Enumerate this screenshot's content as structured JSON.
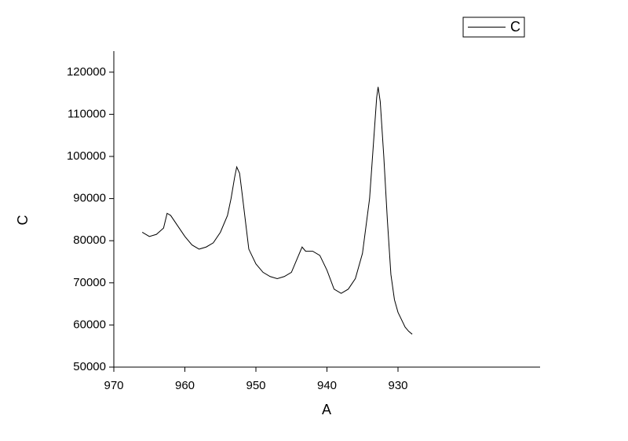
{
  "chart_data": {
    "type": "line",
    "x_label": "A",
    "y_label": "C",
    "x": [
      966,
      965,
      964,
      963,
      962.5,
      962,
      961,
      960,
      959,
      958,
      957,
      956,
      955,
      954,
      953.5,
      953,
      952.7,
      952.3,
      952,
      951.5,
      951,
      950,
      949,
      948,
      947,
      946,
      945,
      944,
      943.5,
      943,
      942,
      941,
      940,
      939,
      938,
      937,
      936,
      935,
      934,
      933.5,
      933,
      932.8,
      932.5,
      932,
      931.5,
      931,
      930.5,
      930,
      929,
      928.5,
      928
    ],
    "series": [
      {
        "name": "C",
        "color": "#000000",
        "values": [
          82000,
          81000,
          81500,
          83000,
          86500,
          86000,
          83500,
          81000,
          79000,
          78000,
          78500,
          79500,
          82000,
          86000,
          90000,
          95000,
          97500,
          96000,
          92000,
          85000,
          78000,
          74500,
          72500,
          71500,
          71000,
          71500,
          72500,
          76500,
          78500,
          77500,
          77500,
          76500,
          73000,
          68500,
          67500,
          68500,
          71000,
          77000,
          90000,
          102000,
          114000,
          116500,
          113000,
          100000,
          85000,
          72000,
          66000,
          63000,
          59500,
          58500,
          57800
        ]
      }
    ],
    "xlim": [
      970,
      910
    ],
    "xticks": [
      970,
      960,
      950,
      940,
      930
    ],
    "ylim": [
      50000,
      125000
    ],
    "yticks": [
      50000,
      60000,
      70000,
      80000,
      90000,
      100000,
      110000,
      120000
    ],
    "grid": false,
    "legend": "upper-right"
  }
}
